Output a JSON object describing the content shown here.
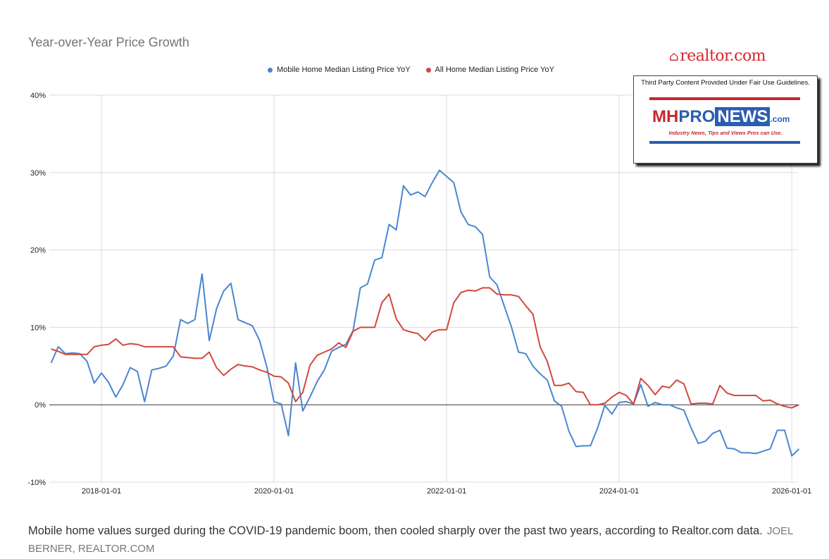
{
  "chart_data": {
    "type": "line",
    "title": "Year-over-Year Price Growth",
    "xlabel": "",
    "ylabel": "",
    "ylim": [
      -10,
      40
    ],
    "y_ticks": [
      "40%",
      "30%",
      "20%",
      "10%",
      "0%",
      "-10%"
    ],
    "y_tick_values": [
      40,
      30,
      20,
      10,
      0,
      -10
    ],
    "x_ticks": [
      "2018-01-01",
      "2020-01-01",
      "2022-01-01",
      "2024-01-01",
      "2026-01-01"
    ],
    "xlim": [
      "2017-06",
      "2026-02"
    ],
    "grid": true,
    "legend_position": "top",
    "x": [
      "2017-06",
      "2017-07",
      "2017-08",
      "2017-09",
      "2017-10",
      "2017-11",
      "2017-12",
      "2018-01",
      "2018-02",
      "2018-03",
      "2018-04",
      "2018-05",
      "2018-06",
      "2018-07",
      "2018-08",
      "2018-09",
      "2018-10",
      "2018-11",
      "2018-12",
      "2019-01",
      "2019-02",
      "2019-03",
      "2019-04",
      "2019-05",
      "2019-06",
      "2019-07",
      "2019-08",
      "2019-09",
      "2019-10",
      "2019-11",
      "2019-12",
      "2020-01",
      "2020-02",
      "2020-03",
      "2020-04",
      "2020-05",
      "2020-06",
      "2020-07",
      "2020-08",
      "2020-09",
      "2020-10",
      "2020-11",
      "2020-12",
      "2021-01",
      "2021-02",
      "2021-03",
      "2021-04",
      "2021-05",
      "2021-06",
      "2021-07",
      "2021-08",
      "2021-09",
      "2021-10",
      "2021-11",
      "2021-12",
      "2022-01",
      "2022-02",
      "2022-03",
      "2022-04",
      "2022-05",
      "2022-06",
      "2022-07",
      "2022-08",
      "2022-09",
      "2022-10",
      "2022-11",
      "2022-12",
      "2023-01",
      "2023-02",
      "2023-03",
      "2023-04",
      "2023-05",
      "2023-06",
      "2023-07",
      "2023-08",
      "2023-09",
      "2023-10",
      "2023-11",
      "2023-12",
      "2024-01",
      "2024-02",
      "2024-03",
      "2024-04",
      "2024-05",
      "2024-06",
      "2024-07",
      "2024-08",
      "2024-09",
      "2024-10",
      "2024-11",
      "2024-12",
      "2025-01",
      "2025-02",
      "2025-03",
      "2025-04",
      "2025-05",
      "2025-06",
      "2025-07",
      "2025-08",
      "2025-09",
      "2025-10",
      "2025-11",
      "2025-12",
      "2026-01",
      "2026-02"
    ],
    "series": [
      {
        "name": "Mobile Home Median Listing Price YoY",
        "color": "#4a86d0",
        "values": [
          5.4,
          7.5,
          6.6,
          6.7,
          6.6,
          5.6,
          2.8,
          4.1,
          2.9,
          1.0,
          2.6,
          4.8,
          4.3,
          0.4,
          4.5,
          4.7,
          5.0,
          6.3,
          11.0,
          10.5,
          11.0,
          16.9,
          8.3,
          12.4,
          14.7,
          15.7,
          11.0,
          10.6,
          10.2,
          8.3,
          4.9,
          0.4,
          0.1,
          -4.0,
          5.4,
          -0.8,
          1.0,
          3.0,
          4.5,
          6.9,
          7.4,
          7.8,
          9.6,
          15.1,
          15.6,
          18.7,
          19.0,
          23.3,
          22.6,
          28.3,
          27.1,
          27.5,
          26.9,
          28.7,
          30.3,
          29.5,
          28.7,
          24.9,
          23.3,
          23.0,
          22.0,
          16.5,
          15.5,
          12.8,
          10.1,
          6.8,
          6.6,
          5.0,
          4.0,
          3.2,
          0.5,
          -0.2,
          -3.4,
          -5.4,
          -5.3,
          -5.3,
          -3.0,
          -0.1,
          -1.2,
          0.3,
          0.4,
          0.1,
          2.6,
          -0.2,
          0.3,
          0,
          0,
          -0.4,
          -0.7,
          -3.0,
          -5.0,
          -4.7,
          -3.7,
          -3.3,
          -5.6,
          -5.7,
          -6.2,
          -6.2,
          -6.3,
          -6.0,
          -5.7,
          -3.3,
          -3.3,
          -6.6,
          -5.7
        ]
      },
      {
        "name": "All Home Median Listing Price YoY",
        "color": "#d1483e",
        "values": [
          7.2,
          6.9,
          6.5,
          6.5,
          6.5,
          6.5,
          7.5,
          7.7,
          7.8,
          8.5,
          7.7,
          7.9,
          7.8,
          7.5,
          7.5,
          7.5,
          7.5,
          7.5,
          6.2,
          6.1,
          6.0,
          6.0,
          6.8,
          4.8,
          3.8,
          4.6,
          5.2,
          5.0,
          4.9,
          4.5,
          4.2,
          3.7,
          3.6,
          2.8,
          0.4,
          1.6,
          5.1,
          6.4,
          6.8,
          7.2,
          8.0,
          7.4,
          9.5,
          10.0,
          10.0,
          10.0,
          13.2,
          14.3,
          11.1,
          9.7,
          9.4,
          9.2,
          8.3,
          9.4,
          9.7,
          9.7,
          13.2,
          14.5,
          14.8,
          14.7,
          15.1,
          15.1,
          14.3,
          14.2,
          14.2,
          14.0,
          12.8,
          11.7,
          7.5,
          5.6,
          2.5,
          2.5,
          2.8,
          1.7,
          1.6,
          0,
          0,
          0.2,
          1.0,
          1.6,
          1.2,
          0.1,
          3.4,
          2.5,
          1.3,
          2.4,
          2.2,
          3.2,
          2.7,
          0.1,
          0.2,
          0.2,
          0.1,
          2.5,
          1.5,
          1.2,
          1.2,
          1.2,
          1.2,
          0.5,
          0.6,
          0.1,
          -0.2,
          -0.4,
          0
        ]
      }
    ]
  },
  "branding": {
    "realtor_logo": "realtor.com",
    "fair_use_notice": "Third Party Content Provided Under Fair Use Guidelines.",
    "mh_logo": {
      "mh": "MH",
      "pro": "PRO",
      "news": "NEWS",
      "com": ".com"
    },
    "mh_tagline": "Industry News, Tips and Views Pros can Use.",
    "colors": {
      "realtor_red": "#d6262e",
      "mh_red": "#c8262e",
      "mh_blue": "#2b5eb0"
    }
  },
  "caption": {
    "text": "Mobile home values surged during the COVID-19 pandemic boom, then cooled sharply over the past two years, according to Realtor.com data.",
    "credit": "JOEL BERNER, REALTOR.COM"
  }
}
